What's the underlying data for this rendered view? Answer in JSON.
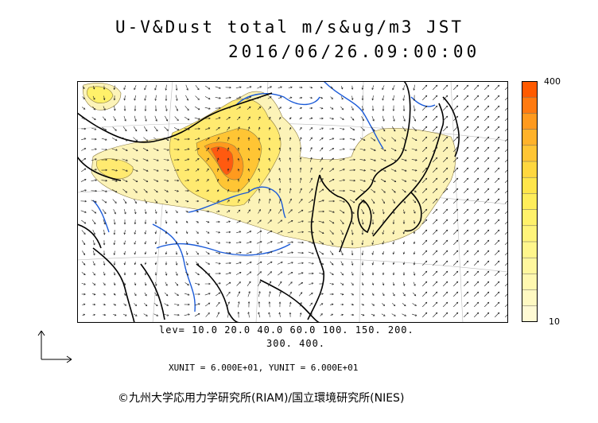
{
  "header": {
    "title": "U-V&Dust total m/s&ug/m3 JST",
    "datetime": "2016/06/26.09:00:00"
  },
  "legend": {
    "max_label": "400",
    "min_label": "10",
    "colors": [
      "#ff5a00",
      "#ff7a10",
      "#ff9a1e",
      "#ffb22a",
      "#ffc534",
      "#ffd73f",
      "#ffe54a",
      "#ffed5a",
      "#fff16a",
      "#fff47a",
      "#fff68c",
      "#fff79e",
      "#fff8b0",
      "#fff9c2",
      "#fffad4"
    ]
  },
  "levels": {
    "line1": "lev= 10.0 20.0 40.0 60.0 100. 150. 200.",
    "line2": "300. 400."
  },
  "units": {
    "text": "XUNIT = 6.000E+01, YUNIT = 6.000E+01"
  },
  "footer": {
    "copyright": "©九州大学応用力学研究所(RIAM)/国立環境研究所(NIES)"
  },
  "map": {
    "coast_color": "#000000",
    "river_color": "#1a5ad8",
    "grid_color": "#bbbbbb",
    "dust_low": "#fcf3b8",
    "dust_mid": "#ffe55a",
    "dust_high": "#ff5a10"
  }
}
